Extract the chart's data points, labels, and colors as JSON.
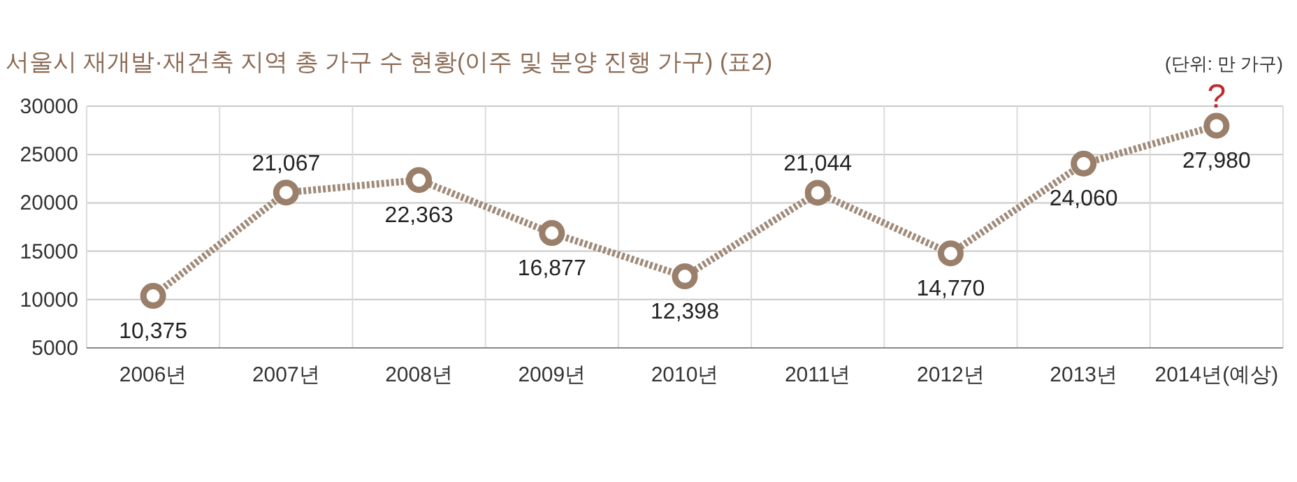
{
  "chart_data": {
    "type": "line",
    "title": "서울시 재개발·재건축 지역 총 가구 수 현황(이주 및 분양 진행 가구) (표2)",
    "categories": [
      "2006년",
      "2007년",
      "2008년",
      "2009년",
      "2010년",
      "2011년",
      "2012년",
      "2013년",
      "2014년(예상)"
    ],
    "series": [
      {
        "color": "#a08b7a",
        "values": [
          10375,
          21067,
          22363,
          16877,
          12398,
          21044,
          14770,
          24060,
          27980
        ],
        "value_labels": [
          "10,375",
          "21,067",
          "22,363",
          "16,877",
          "12,398",
          "21,044",
          "14,770",
          "24,060",
          "27,980"
        ]
      }
    ],
    "ylim": [
      5000,
      30000
    ],
    "yticks": [
      5000,
      10000,
      15000,
      20000,
      25000,
      30000
    ],
    "grid": true,
    "marker": "circle",
    "line_style": "dotted",
    "annotations": [
      "(단위: 만 가구)",
      {
        "text": "?",
        "x": "2014년(예상)",
        "y": 27980
      }
    ]
  }
}
